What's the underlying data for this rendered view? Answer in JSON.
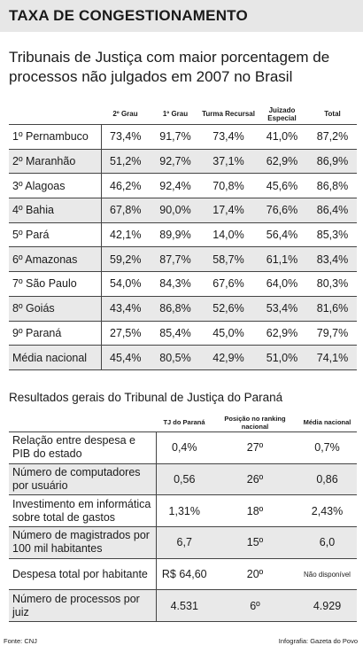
{
  "title": "TAXA DE CONGESTIONAMENTO",
  "subtitle": "Tribunais de Justiça com maior porcentagem de processos não julgados em 2007 no Brasil",
  "table1": {
    "headers": [
      "",
      "2º Grau",
      "1º Grau",
      "Turma Recursal",
      "Juizado Especial",
      "Total"
    ],
    "rows": [
      [
        "1º Pernambuco",
        "73,4%",
        "91,7%",
        "73,4%",
        "41,0%",
        "87,2%"
      ],
      [
        "2º Maranhão",
        "51,2%",
        "92,7%",
        "37,1%",
        "62,9%",
        "86,9%"
      ],
      [
        "3º Alagoas",
        "46,2%",
        "92,4%",
        "70,8%",
        "45,6%",
        "86,8%"
      ],
      [
        "4º Bahia",
        "67,8%",
        "90,0%",
        "17,4%",
        "76,6%",
        "86,4%"
      ],
      [
        "5º Pará",
        "42,1%",
        "89,9%",
        "14,0%",
        "56,4%",
        "85,3%"
      ],
      [
        "6º Amazonas",
        "59,2%",
        "87,7%",
        "58,7%",
        "61,1%",
        "83,4%"
      ],
      [
        "7º São Paulo",
        "54,0%",
        "84,3%",
        "67,6%",
        "64,0%",
        "80,3%"
      ],
      [
        "8º Goiás",
        "43,4%",
        "86,8%",
        "52,6%",
        "53,4%",
        "81,6%"
      ],
      [
        "9º Paraná",
        "27,5%",
        "85,4%",
        "45,0%",
        "62,9%",
        "79,7%"
      ],
      [
        "Média nacional",
        "45,4%",
        "80,5%",
        "42,9%",
        "51,0%",
        "74,1%"
      ]
    ]
  },
  "section2_title": "Resultados gerais do Tribunal de Justiça do Paraná",
  "table2": {
    "headers": [
      "",
      "TJ do Paraná",
      "Posição no ranking nacional",
      "Média nacional"
    ],
    "rows": [
      [
        "Relação entre despesa e PIB do estado",
        "0,4%",
        "27º",
        "0,7%"
      ],
      [
        "Número de computadores por usuário",
        "0,56",
        "26º",
        "0,86"
      ],
      [
        "Investimento em informática sobre total de gastos",
        "1,31%",
        "18º",
        "2,43%"
      ],
      [
        "Número de magistrados por 100 mil habitantes",
        "6,7",
        "15º",
        "6,0"
      ],
      [
        "Despesa total por habitante",
        "R$ 64,60",
        "20º",
        "Não disponível"
      ],
      [
        "Número de processos por juiz",
        "4.531",
        "6º",
        "4.929"
      ]
    ]
  },
  "footer": {
    "source": "Fonte: CNJ",
    "credit": "Infografia: Gazeta do Povo"
  }
}
